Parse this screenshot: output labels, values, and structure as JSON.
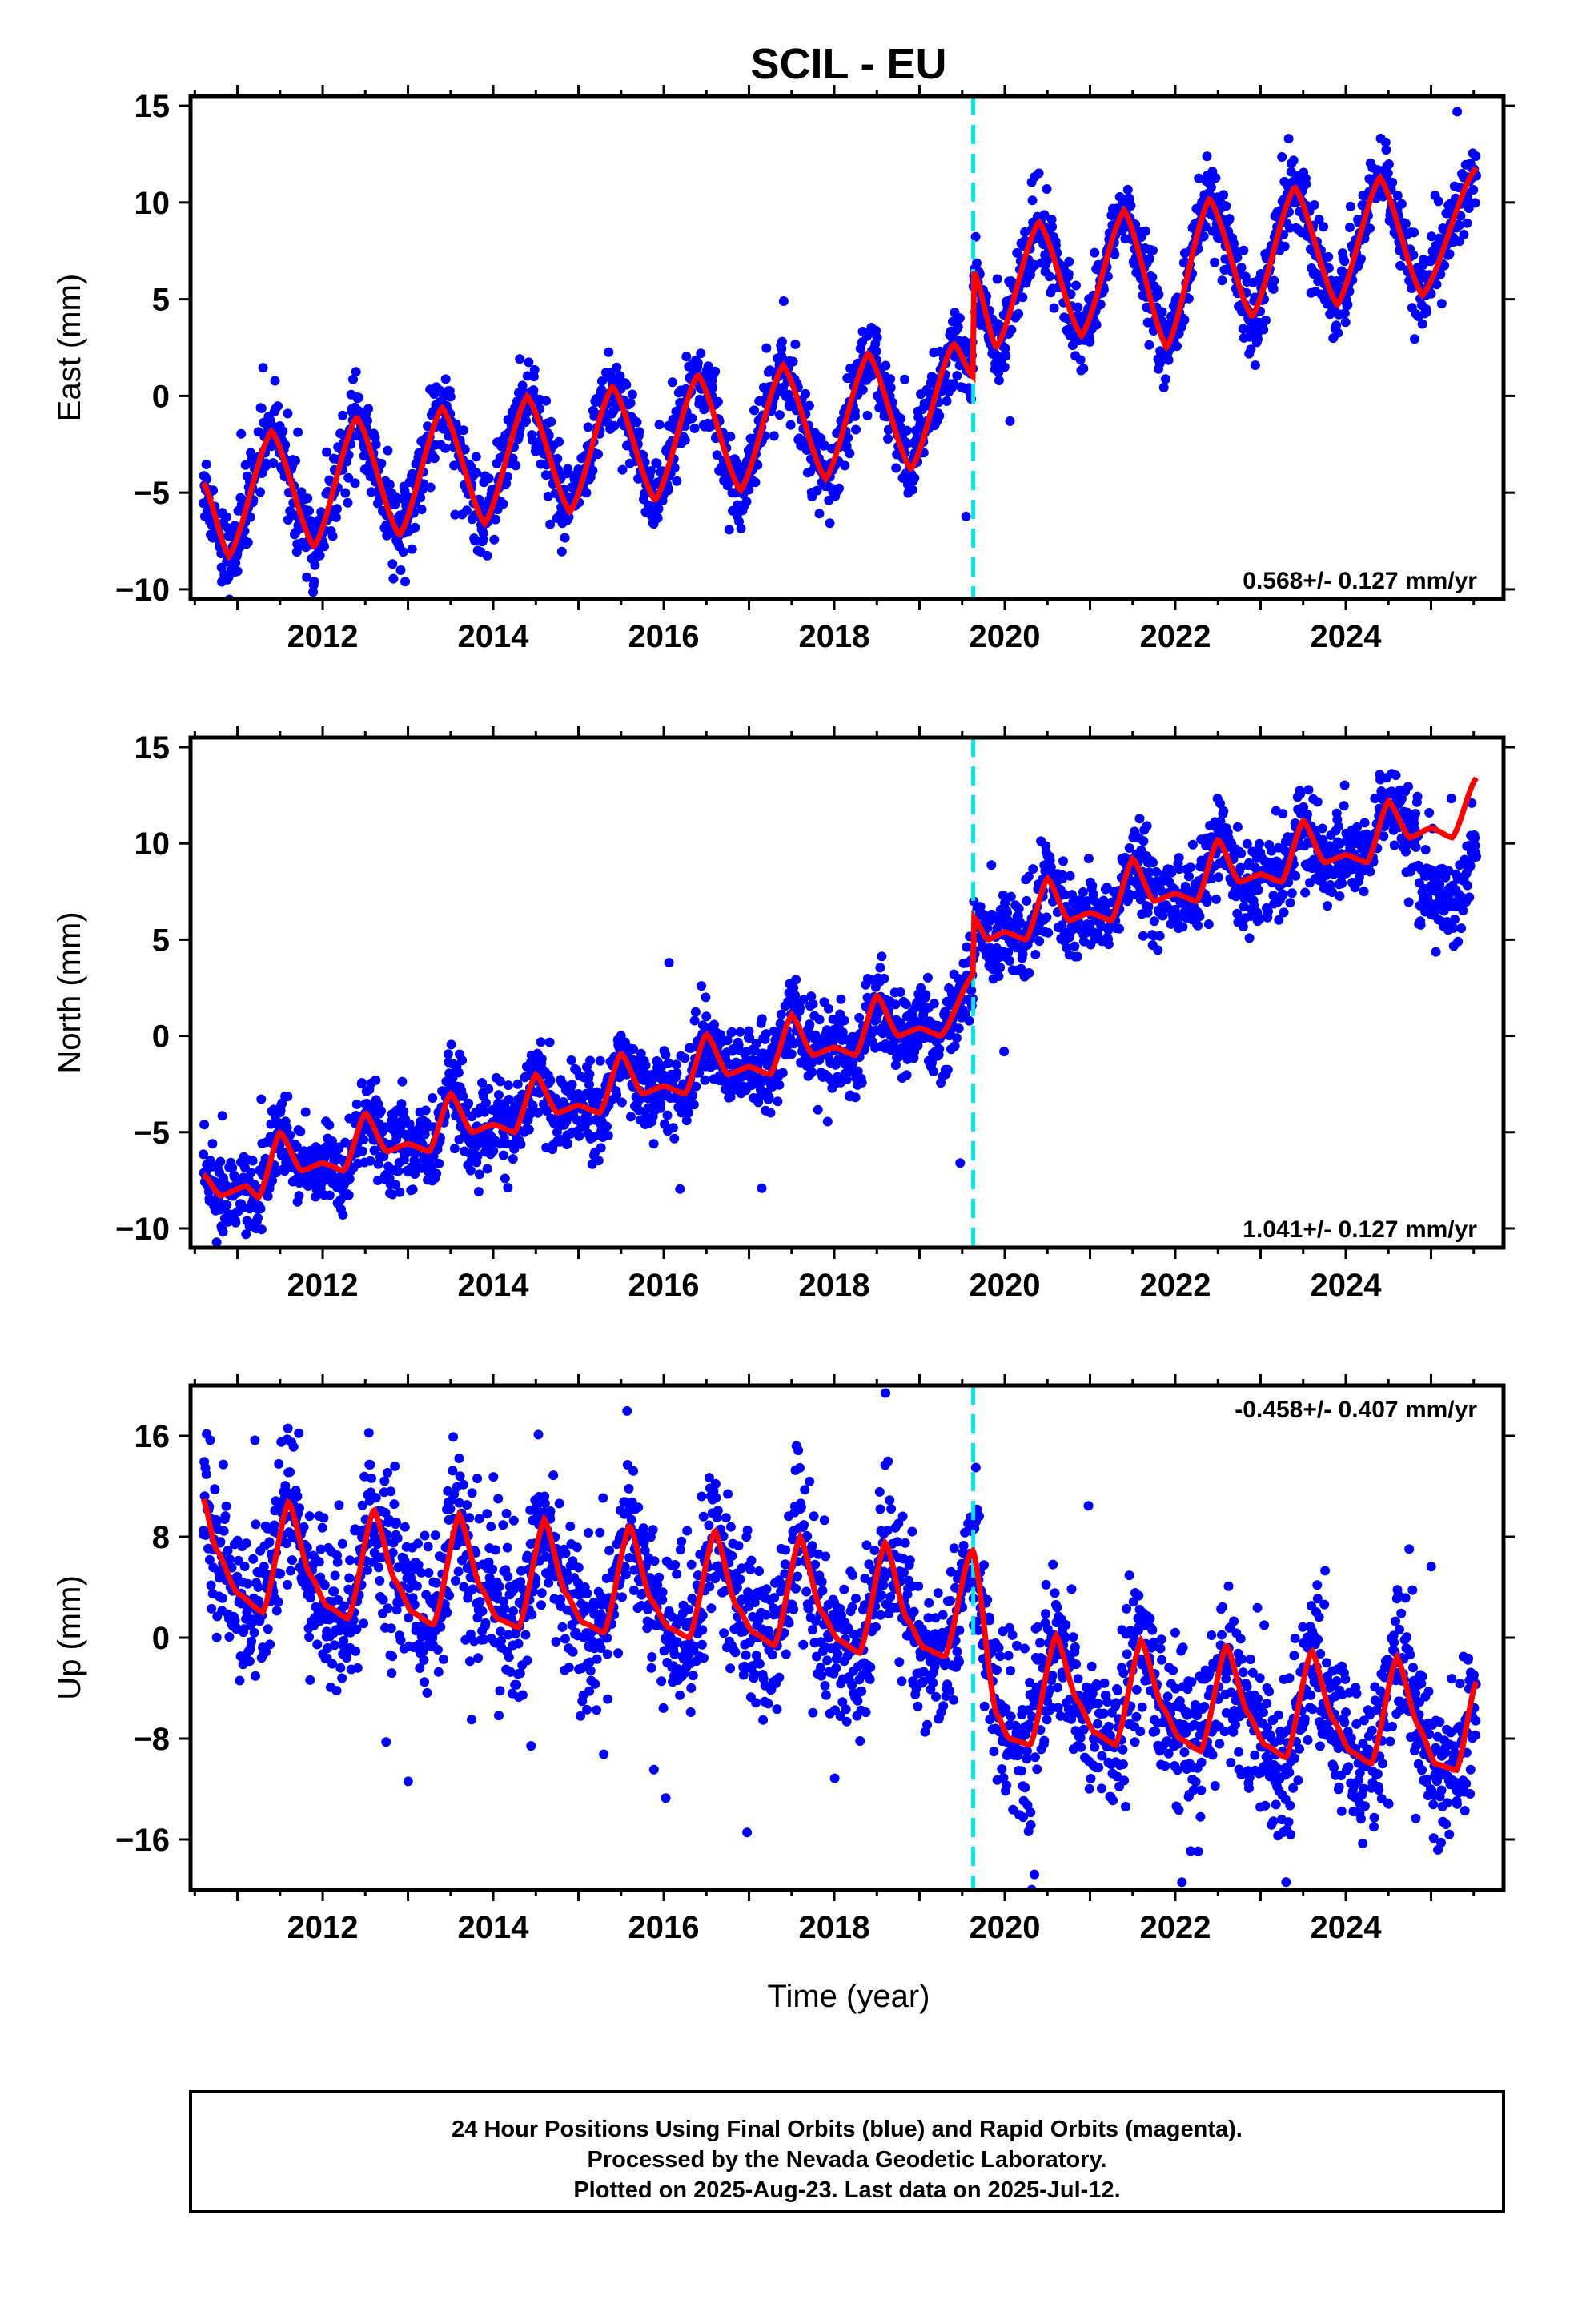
{
  "title": "SCIL - EU",
  "xlabel": "Time (year)",
  "footer": [
    "24 Hour Positions Using Final Orbits (blue) and Rapid Orbits (magenta).",
    "Processed by the Nevada Geodetic Laboratory.",
    "Plotted on 2025-Aug-23. Last data on 2025-Jul-12."
  ],
  "colors": {
    "observations": "#0000ff",
    "model": "#ff0000",
    "offset_line": "#00e5ee",
    "frame": "#000000"
  },
  "chart_data": [
    {
      "type": "scatter",
      "name": "east",
      "ylabel": "East (mm)",
      "rate": "0.568+/- 0.127 mm/yr",
      "xlim": [
        2010.45,
        2025.85
      ],
      "ylim": [
        -10.5,
        15.5
      ],
      "yticks": [
        -10,
        -5,
        0,
        5,
        10,
        15
      ],
      "xticks": [
        2012,
        2014,
        2016,
        2018,
        2020,
        2022,
        2024
      ],
      "data_start": 2010.6,
      "data_end": 2025.53,
      "equipment_change": 2019.63,
      "model_knots": [
        [
          2010.6,
          -4.5
        ],
        [
          2010.9,
          -8.3
        ],
        [
          2011.4,
          -1.8
        ],
        [
          2011.9,
          -7.8
        ],
        [
          2012.4,
          -1.1
        ],
        [
          2012.9,
          -7.2
        ],
        [
          2013.4,
          -0.6
        ],
        [
          2013.9,
          -6.6
        ],
        [
          2014.4,
          0.0
        ],
        [
          2014.9,
          -6.0
        ],
        [
          2015.4,
          0.5
        ],
        [
          2015.9,
          -5.4
        ],
        [
          2016.4,
          1.1
        ],
        [
          2016.9,
          -4.9
        ],
        [
          2017.4,
          1.6
        ],
        [
          2017.9,
          -4.3
        ],
        [
          2018.4,
          2.2
        ],
        [
          2018.9,
          -3.8
        ],
        [
          2019.4,
          2.7
        ],
        [
          2019.63,
          1.0
        ],
        [
          2019.63,
          6.5
        ],
        [
          2019.9,
          2.5
        ],
        [
          2020.4,
          9.0
        ],
        [
          2020.9,
          3.1
        ],
        [
          2021.4,
          9.6
        ],
        [
          2021.9,
          2.5
        ],
        [
          2022.4,
          10.2
        ],
        [
          2022.9,
          4.1
        ],
        [
          2023.4,
          10.8
        ],
        [
          2023.9,
          4.7
        ],
        [
          2024.4,
          11.3
        ],
        [
          2024.9,
          5.2
        ],
        [
          2025.53,
          11.8
        ]
      ],
      "noise_sd": 1.0,
      "outlier_rate": 0.02,
      "point_count": 2600
    },
    {
      "type": "scatter",
      "name": "north",
      "ylabel": "North (mm)",
      "rate": "1.041+/- 0.127 mm/yr",
      "xlim": [
        2010.45,
        2025.85
      ],
      "ylim": [
        -11,
        15.5
      ],
      "yticks": [
        -10,
        -5,
        0,
        5,
        10,
        15
      ],
      "xticks": [
        2012,
        2014,
        2016,
        2018,
        2020,
        2022,
        2024
      ],
      "data_start": 2010.6,
      "data_end": 2025.53,
      "equipment_change": 2019.63,
      "model_knots": [
        [
          2010.6,
          -7.2
        ],
        [
          2010.8,
          -8.3
        ],
        [
          2011.1,
          -7.8
        ],
        [
          2011.25,
          -8.4
        ],
        [
          2011.5,
          -5.0
        ],
        [
          2011.75,
          -7.0
        ],
        [
          2012.0,
          -6.6
        ],
        [
          2012.25,
          -7.0
        ],
        [
          2012.5,
          -4.0
        ],
        [
          2012.75,
          -6.0
        ],
        [
          2013.0,
          -5.6
        ],
        [
          2013.25,
          -6.0
        ],
        [
          2013.5,
          -3.0
        ],
        [
          2013.75,
          -5.0
        ],
        [
          2014.0,
          -4.6
        ],
        [
          2014.25,
          -5.0
        ],
        [
          2014.5,
          -2.0
        ],
        [
          2014.75,
          -4.0
        ],
        [
          2015.0,
          -3.6
        ],
        [
          2015.25,
          -4.0
        ],
        [
          2015.5,
          -0.9
        ],
        [
          2015.75,
          -3.0
        ],
        [
          2016.0,
          -2.6
        ],
        [
          2016.25,
          -3.0
        ],
        [
          2016.5,
          0.1
        ],
        [
          2016.75,
          -2.0
        ],
        [
          2017.0,
          -1.6
        ],
        [
          2017.25,
          -2.0
        ],
        [
          2017.5,
          1.1
        ],
        [
          2017.75,
          -1.0
        ],
        [
          2018.0,
          -0.6
        ],
        [
          2018.25,
          -1.0
        ],
        [
          2018.5,
          2.1
        ],
        [
          2018.75,
          0.0
        ],
        [
          2019.0,
          0.4
        ],
        [
          2019.25,
          0.0
        ],
        [
          2019.63,
          3.2
        ],
        [
          2019.63,
          6.2
        ],
        [
          2019.8,
          5.0
        ],
        [
          2020.0,
          5.4
        ],
        [
          2020.25,
          5.0
        ],
        [
          2020.5,
          8.2
        ],
        [
          2020.75,
          6.0
        ],
        [
          2021.0,
          6.4
        ],
        [
          2021.25,
          6.0
        ],
        [
          2021.5,
          9.2
        ],
        [
          2021.75,
          7.0
        ],
        [
          2022.0,
          7.4
        ],
        [
          2022.25,
          7.0
        ],
        [
          2022.5,
          10.2
        ],
        [
          2022.75,
          8.0
        ],
        [
          2023.0,
          8.4
        ],
        [
          2023.25,
          8.0
        ],
        [
          2023.5,
          11.2
        ],
        [
          2023.75,
          9.0
        ],
        [
          2024.0,
          9.4
        ],
        [
          2024.25,
          9.0
        ],
        [
          2024.5,
          12.2
        ],
        [
          2024.75,
          10.3
        ],
        [
          2025.0,
          10.8
        ],
        [
          2025.25,
          10.3
        ],
        [
          2025.53,
          13.4
        ]
      ],
      "late_data_shift": {
        "from": 2024.85,
        "offset": -3.5
      },
      "noise_sd": 1.1,
      "outlier_rate": 0.02,
      "point_count": 2600
    },
    {
      "type": "scatter",
      "name": "up",
      "ylabel": "Up (mm)",
      "rate": "-0.458+/- 0.407 mm/yr",
      "xlim": [
        2010.45,
        2025.85
      ],
      "ylim": [
        -20,
        20
      ],
      "yticks": [
        -16,
        -8,
        0,
        8,
        16
      ],
      "xticks": [
        2012,
        2014,
        2016,
        2018,
        2020,
        2022,
        2024
      ],
      "data_start": 2010.6,
      "data_end": 2025.53,
      "equipment_change": 2019.63,
      "model_knots": [
        [
          2010.6,
          11.0
        ],
        [
          2010.75,
          7.0
        ],
        [
          2011.0,
          3.5
        ],
        [
          2011.3,
          2.0
        ],
        [
          2011.6,
          10.8
        ],
        [
          2011.85,
          5.0
        ],
        [
          2012.05,
          2.5
        ],
        [
          2012.3,
          1.5
        ],
        [
          2012.6,
          10.2
        ],
        [
          2012.85,
          4.5
        ],
        [
          2013.05,
          2.0
        ],
        [
          2013.3,
          1.0
        ],
        [
          2013.6,
          9.8
        ],
        [
          2013.85,
          4.0
        ],
        [
          2014.05,
          1.5
        ],
        [
          2014.3,
          0.8
        ],
        [
          2014.6,
          9.4
        ],
        [
          2014.85,
          3.5
        ],
        [
          2015.05,
          1.2
        ],
        [
          2015.3,
          0.4
        ],
        [
          2015.6,
          8.9
        ],
        [
          2015.85,
          3.0
        ],
        [
          2016.05,
          0.8
        ],
        [
          2016.3,
          0.0
        ],
        [
          2016.6,
          8.5
        ],
        [
          2016.85,
          2.5
        ],
        [
          2017.05,
          0.4
        ],
        [
          2017.3,
          -0.6
        ],
        [
          2017.6,
          8.0
        ],
        [
          2017.85,
          2.0
        ],
        [
          2018.05,
          -0.2
        ],
        [
          2018.3,
          -1.2
        ],
        [
          2018.6,
          7.6
        ],
        [
          2018.85,
          1.5
        ],
        [
          2019.05,
          -0.8
        ],
        [
          2019.3,
          -1.5
        ],
        [
          2019.6,
          6.8
        ],
        [
          2019.63,
          6.9
        ],
        [
          2019.9,
          -6.0
        ],
        [
          2020.05,
          -8.0
        ],
        [
          2020.3,
          -8.5
        ],
        [
          2020.6,
          0.2
        ],
        [
          2020.85,
          -5.0
        ],
        [
          2021.05,
          -7.5
        ],
        [
          2021.3,
          -8.5
        ],
        [
          2021.6,
          -0.2
        ],
        [
          2021.85,
          -5.5
        ],
        [
          2022.05,
          -8.0
        ],
        [
          2022.3,
          -9.0
        ],
        [
          2022.6,
          -0.6
        ],
        [
          2022.85,
          -6.0
        ],
        [
          2023.05,
          -8.5
        ],
        [
          2023.3,
          -9.5
        ],
        [
          2023.6,
          -1.0
        ],
        [
          2023.85,
          -6.5
        ],
        [
          2024.05,
          -9.0
        ],
        [
          2024.3,
          -10.0
        ],
        [
          2024.6,
          -1.5
        ],
        [
          2024.85,
          -7.0
        ],
        [
          2025.05,
          -10.0
        ],
        [
          2025.3,
          -10.5
        ],
        [
          2025.53,
          -3.5
        ]
      ],
      "noise_sd": 3.0,
      "outlier_rate": 0.04,
      "point_count": 2600
    }
  ]
}
